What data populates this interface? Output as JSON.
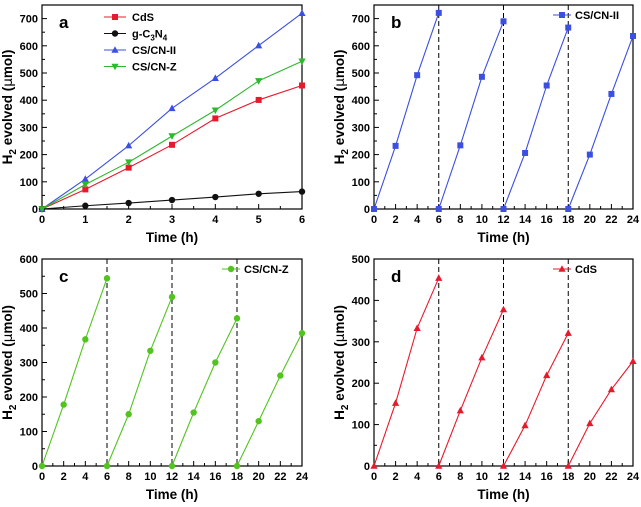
{
  "y_title": {
    "main": "H",
    "sub": "2",
    "rest": " evolved (",
    "mu": "μ",
    "unit": "mol)"
  },
  "chart_data": [
    {
      "type": "line",
      "panel": "a",
      "xlabel": "Time (h)",
      "ylabel": "H2 evolved (μmol)",
      "xlim": [
        0,
        6
      ],
      "ylim": [
        0,
        750
      ],
      "x_ticks": [
        0,
        1,
        2,
        3,
        4,
        5,
        6
      ],
      "y_ticks": [
        0,
        100,
        200,
        300,
        400,
        500,
        600,
        700
      ],
      "legend_position": "top-left",
      "cycle_breaks": [],
      "series": [
        {
          "name": "CdS",
          "color": "#e8192c",
          "marker": "square",
          "x": [
            0,
            1,
            2,
            3,
            4,
            5,
            6
          ],
          "values": [
            0,
            72,
            152,
            236,
            333,
            401,
            454
          ]
        },
        {
          "name": "g-C3N4",
          "label_base": "g-C",
          "label_sub1": "3",
          "label_mid": "N",
          "label_sub2": "4",
          "color": "#111111",
          "marker": "circle",
          "x": [
            0,
            1,
            2,
            3,
            4,
            5,
            6
          ],
          "values": [
            0,
            12,
            22,
            33,
            44,
            56,
            64
          ]
        },
        {
          "name": "CS/CN-II",
          "color": "#3b4fe0",
          "marker": "triangle-up",
          "x": [
            0,
            1,
            2,
            3,
            4,
            5,
            6
          ],
          "values": [
            0,
            110,
            233,
            370,
            481,
            601,
            720
          ]
        },
        {
          "name": "CS/CN-Z",
          "color": "#2db82d",
          "marker": "triangle-down",
          "x": [
            0,
            1,
            2,
            3,
            4,
            5,
            6
          ],
          "values": [
            0,
            90,
            172,
            268,
            363,
            471,
            543
          ]
        }
      ]
    },
    {
      "type": "line",
      "panel": "b",
      "xlabel": "Time (h)",
      "ylabel": "H2 evolved (μmol)",
      "xlim": [
        0,
        24
      ],
      "ylim": [
        0,
        750
      ],
      "x_ticks": [
        0,
        2,
        4,
        6,
        8,
        10,
        12,
        14,
        16,
        18,
        20,
        22,
        24
      ],
      "y_ticks": [
        0,
        100,
        200,
        300,
        400,
        500,
        600,
        700
      ],
      "legend_position": "top-right",
      "cycle_breaks": [
        6,
        12,
        18
      ],
      "series": [
        {
          "name": "CS/CN-II",
          "color": "#3b4fe0",
          "marker": "square",
          "segments": [
            {
              "x": [
                0,
                2,
                4,
                6
              ],
              "values": [
                0,
                232,
                492,
                721
              ]
            },
            {
              "x": [
                6,
                8,
                10,
                12
              ],
              "values": [
                0,
                234,
                486,
                690
              ]
            },
            {
              "x": [
                12,
                14,
                16,
                18
              ],
              "values": [
                0,
                206,
                454,
                667
              ]
            },
            {
              "x": [
                18,
                20,
                22,
                24
              ],
              "values": [
                0,
                200,
                423,
                636
              ]
            }
          ]
        }
      ]
    },
    {
      "type": "line",
      "panel": "c",
      "xlabel": "Time (h)",
      "ylabel": "H2 evolved (μmol)",
      "xlim": [
        0,
        24
      ],
      "ylim": [
        0,
        600
      ],
      "x_ticks": [
        0,
        2,
        4,
        6,
        8,
        10,
        12,
        14,
        16,
        18,
        20,
        22,
        24
      ],
      "y_ticks": [
        0,
        100,
        200,
        300,
        400,
        500,
        600
      ],
      "legend_position": "top-right",
      "cycle_breaks": [
        6,
        12,
        18
      ],
      "series": [
        {
          "name": "CS/CN-Z",
          "color": "#52c41f",
          "marker": "circle",
          "segments": [
            {
              "x": [
                0,
                2,
                4,
                6
              ],
              "values": [
                0,
                178,
                367,
                544
              ]
            },
            {
              "x": [
                6,
                8,
                10,
                12
              ],
              "values": [
                0,
                150,
                334,
                490
              ]
            },
            {
              "x": [
                12,
                14,
                16,
                18
              ],
              "values": [
                0,
                155,
                300,
                428
              ]
            },
            {
              "x": [
                18,
                20,
                22,
                24
              ],
              "values": [
                0,
                130,
                262,
                385
              ]
            }
          ]
        }
      ]
    },
    {
      "type": "line",
      "panel": "d",
      "xlabel": "Time (h)",
      "ylabel": "H2 evolved (μmol)",
      "xlim": [
        0,
        24
      ],
      "ylim": [
        0,
        500
      ],
      "x_ticks": [
        0,
        2,
        4,
        6,
        8,
        10,
        12,
        14,
        16,
        18,
        20,
        22,
        24
      ],
      "y_ticks": [
        0,
        100,
        200,
        300,
        400,
        500
      ],
      "legend_position": "top-right",
      "cycle_breaks": [
        6,
        12,
        18
      ],
      "series": [
        {
          "name": "CdS",
          "color": "#e8192c",
          "marker": "triangle-up",
          "segments": [
            {
              "x": [
                0,
                2,
                4,
                6
              ],
              "values": [
                0,
                152,
                333,
                454
              ]
            },
            {
              "x": [
                6,
                8,
                10,
                12
              ],
              "values": [
                0,
                134,
                262,
                378
              ]
            },
            {
              "x": [
                12,
                14,
                16,
                18
              ],
              "values": [
                0,
                98,
                219,
                321
              ]
            },
            {
              "x": [
                18,
                20,
                22,
                24
              ],
              "values": [
                0,
                103,
                185,
                253
              ]
            }
          ]
        }
      ]
    }
  ]
}
